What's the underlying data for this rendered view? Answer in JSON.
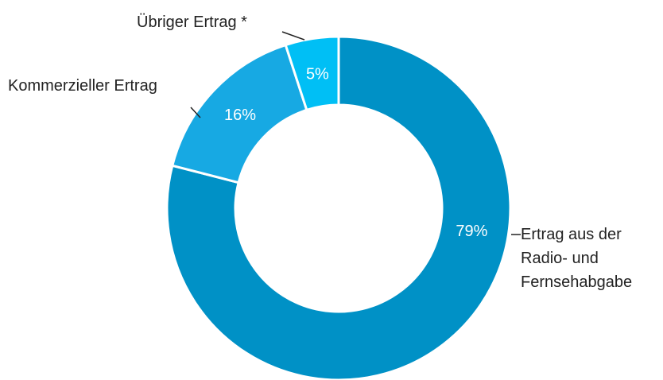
{
  "chart_data": {
    "type": "donut",
    "categories": [
      "Ertrag aus der Radio- und Fernsehabgabe",
      "Kommerzieller Ertrag",
      "Übriger Ertrag *"
    ],
    "values": [
      79,
      16,
      5
    ],
    "value_labels": [
      "79%",
      "16%",
      "5%"
    ],
    "colors": [
      "#0091c6",
      "#17a9e3",
      "#00bff5"
    ]
  }
}
